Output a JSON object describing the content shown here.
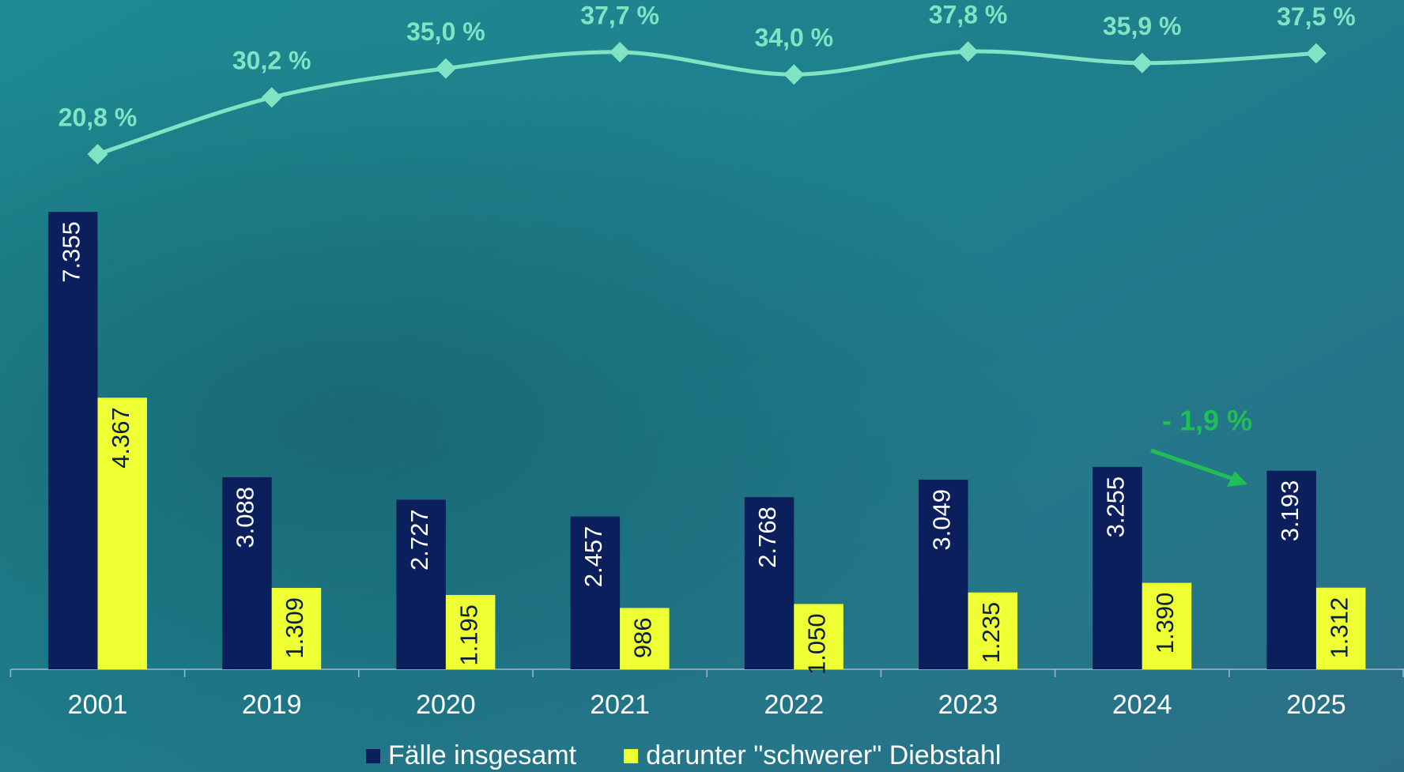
{
  "chart_data": {
    "type": "bar",
    "categories": [
      "2001",
      "2019",
      "2020",
      "2021",
      "2022",
      "2023",
      "2024",
      "2025"
    ],
    "series": [
      {
        "name": "Fälle insgesamt",
        "color": "#0b1f5c",
        "values": [
          7355,
          3088,
          2727,
          2457,
          2768,
          3049,
          3255,
          3193
        ],
        "value_labels": [
          "7.355",
          "3.088",
          "2.727",
          "2.457",
          "2.768",
          "3.049",
          "3.255",
          "3.193"
        ]
      },
      {
        "name": "darunter \"schwerer\" Diebstahl",
        "color": "#eeff33",
        "values": [
          4367,
          1309,
          1195,
          986,
          1050,
          1235,
          1390,
          1312
        ],
        "value_labels": [
          "4.367",
          "1.309",
          "1.195",
          "986",
          "1.050",
          "1.235",
          "1.390",
          "1.312"
        ]
      }
    ],
    "line": {
      "type": "line",
      "color": "#7fe3c4",
      "values": [
        20.8,
        30.2,
        35.0,
        37.7,
        34.0,
        37.8,
        35.9,
        37.5
      ],
      "value_labels": [
        "20,8 %",
        "30,2 %",
        "35,0 %",
        "37,7 %",
        "34,0 %",
        "37,8 %",
        "35,9 %",
        "37,5 %"
      ]
    },
    "annotation": {
      "text": "- 1,9 %",
      "color": "#1fbf55"
    }
  }
}
